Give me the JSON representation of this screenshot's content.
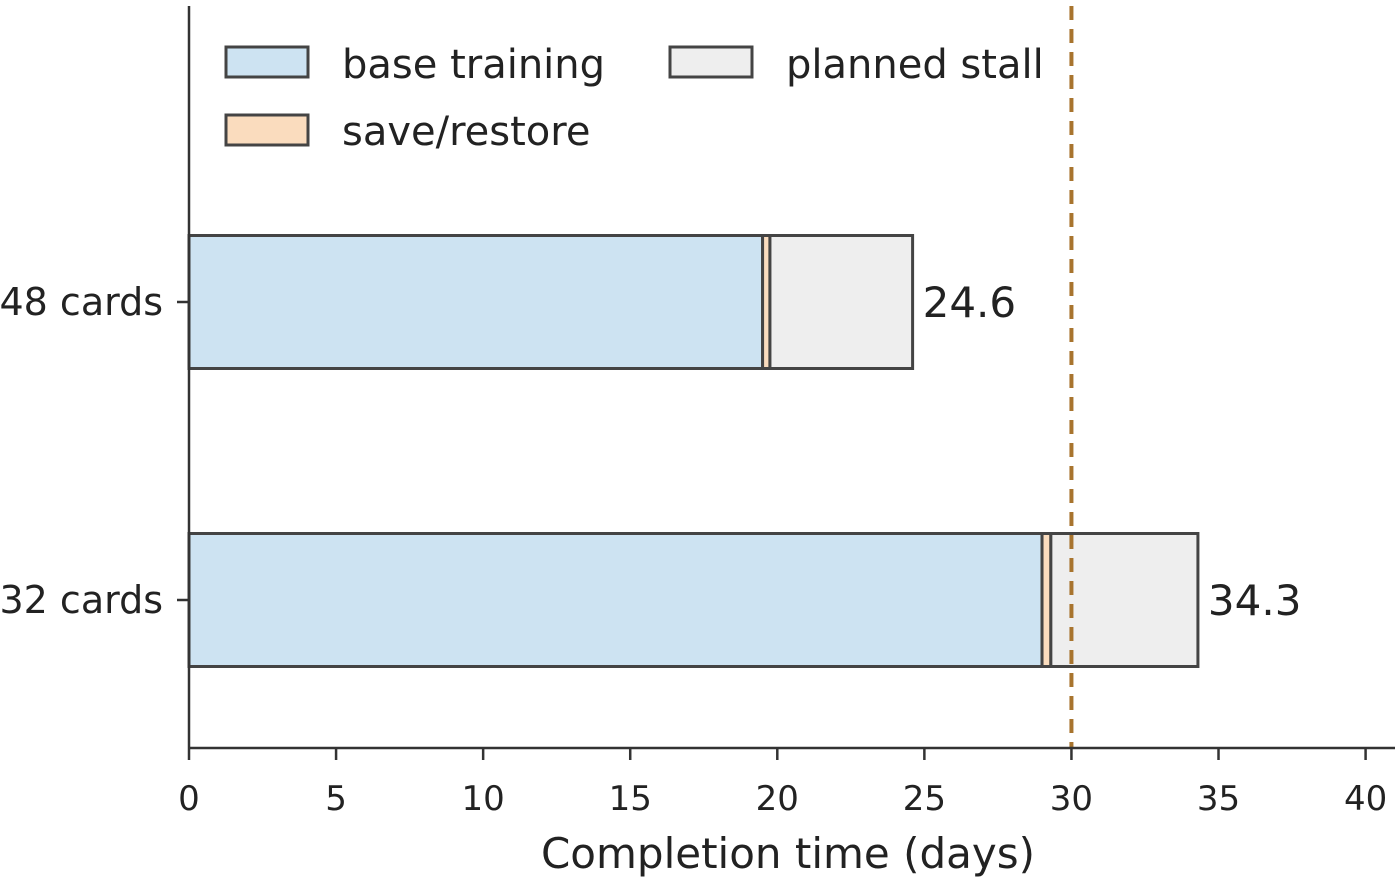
{
  "chart_data": {
    "type": "bar",
    "orientation": "horizontal",
    "stacked": true,
    "categories": [
      "48 cards",
      "32 cards"
    ],
    "series": [
      {
        "name": "base training",
        "color": "#cde3f2",
        "values": [
          19.5,
          29.0
        ]
      },
      {
        "name": "save/restore",
        "color": "#fadcbe",
        "values": [
          0.25,
          0.3
        ]
      },
      {
        "name": "planned stall",
        "color": "#eeeeee",
        "values": [
          4.85,
          5.0
        ]
      }
    ],
    "totals": [
      "24.6",
      "34.3"
    ],
    "xlabel": "Completion time (days)",
    "ylabel": "",
    "xlim": [
      0,
      41
    ],
    "xticks": [
      "0",
      "5",
      "10",
      "15",
      "20",
      "25",
      "30",
      "35",
      "40"
    ],
    "reference_line": {
      "x": 30,
      "color": "#a8742e",
      "style": "dashed"
    },
    "bar_edge_color": "#444444",
    "grid": false,
    "legend_position": "top-left"
  }
}
